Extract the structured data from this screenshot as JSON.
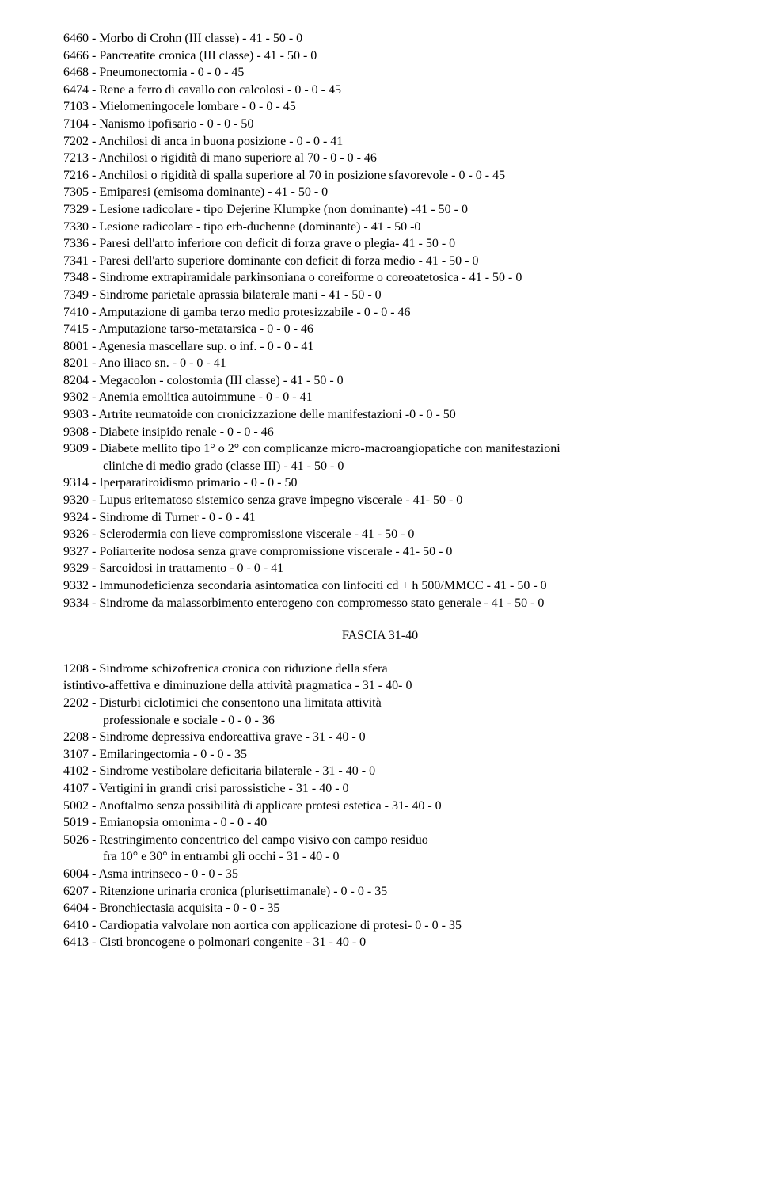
{
  "section1": {
    "lines": [
      "6460 - Morbo di Crohn (III classe) - 41 - 50 - 0",
      "6466 - Pancreatite cronica (III classe) - 41 - 50 - 0",
      "6468 - Pneumonectomia - 0 - 0 - 45",
      "6474 - Rene a ferro di cavallo con calcolosi - 0 - 0 - 45",
      "7103 - Mielomeningocele lombare - 0 - 0 - 45",
      "7104 - Nanismo ipofisario - 0 - 0 - 50",
      "7202 - Anchilosi di anca in buona posizione - 0 - 0 - 41",
      "7213 - Anchilosi o rigidità di mano superiore al 70 - 0 - 0 - 46",
      "7216 - Anchilosi o rigidità di spalla superiore al 70 in posizione sfavorevole - 0 - 0 - 45",
      "7305 - Emiparesi (emisoma dominante) - 41 - 50 - 0",
      "7329 - Lesione radicolare - tipo Dejerine Klumpke (non dominante) -41 - 50 - 0",
      "7330 - Lesione radicolare - tipo erb-duchenne (dominante) - 41 - 50 -0",
      "7336 - Paresi dell'arto inferiore con deficit di forza grave o plegia- 41 - 50 - 0",
      "7341 - Paresi dell'arto superiore dominante con deficit di forza medio - 41 - 50 - 0",
      "7348 - Sindrome extrapiramidale parkinsoniana o coreiforme o coreoatetosica - 41 - 50 - 0",
      "7349 - Sindrome parietale aprassia bilaterale mani - 41 - 50 - 0",
      "7410 - Amputazione di gamba terzo medio protesizzabile - 0 - 0 - 46",
      "7415 - Amputazione tarso-metatarsica - 0 - 0 - 46",
      "8001 - Agenesia mascellare sup. o inf. - 0 - 0 - 41",
      "8201 - Ano iliaco sn. - 0 - 0 - 41",
      "8204 - Megacolon - colostomia (III classe) - 41 - 50 - 0",
      "9302 - Anemia emolitica autoimmune - 0 - 0 - 41",
      "9303 - Artrite reumatoide con cronicizzazione delle manifestazioni -0 - 0 - 50",
      "9308 - Diabete insipido renale - 0 - 0 - 46",
      "9309 - Diabete mellito tipo 1° o 2° con complicanze micro-macroangiopatiche con manifestazioni"
    ],
    "indent1": "cliniche di medio grado (classe III) - 41 - 50 - 0",
    "lines2": [
      "9314 - Iperparatiroidismo primario - 0 - 0 - 50",
      "9320 - Lupus eritematoso sistemico senza grave impegno viscerale - 41- 50 - 0",
      "9324 - Sindrome di Turner - 0 - 0 - 41",
      "9326 - Sclerodermia con lieve compromissione viscerale - 41 - 50 - 0",
      "9327 - Poliarterite nodosa senza grave compromissione viscerale - 41- 50 - 0",
      "9329 - Sarcoidosi in trattamento - 0 - 0 - 41",
      "9332 - Immunodeficienza secondaria asintomatica con linfociti cd + h 500/MMCC - 41 - 50 - 0",
      "9334 - Sindrome da malassorbimento enterogeno con compromesso stato generale - 41 - 50 - 0"
    ]
  },
  "heading": "FASCIA 31-40",
  "section2": {
    "lines1": [
      "1208 - Sindrome schizofrenica cronica con riduzione della sfera",
      "istintivo-affettiva e diminuzione della attività pragmatica - 31 - 40- 0",
      "2202 - Disturbi ciclotimici che consentono una limitata attività"
    ],
    "indent1": "professionale e sociale - 0 - 0 - 36",
    "lines2": [
      "2208 - Sindrome depressiva endoreattiva grave - 31 - 40 - 0",
      "3107 - Emilaringectomia - 0 - 0 - 35",
      "4102 - Sindrome vestibolare deficitaria bilaterale - 31 - 40 - 0",
      "4107 - Vertigini in grandi crisi parossistiche - 31 - 40 - 0",
      "5002 - Anoftalmo senza possibilità di applicare protesi estetica - 31- 40 - 0",
      "5019 - Emianopsia omonima - 0 - 0 - 40",
      "5026 - Restringimento concentrico del campo visivo con campo residuo"
    ],
    "indent2": "fra 10° e 30° in entrambi gli occhi - 31 - 40 - 0",
    "lines3": [
      "6004 - Asma intrinseco - 0 - 0 - 35",
      "6207 - Ritenzione urinaria cronica (plurisettimanale) - 0 - 0 - 35",
      "6404 - Bronchiectasia acquisita - 0 - 0 - 35",
      "6410 - Cardiopatia valvolare non aortica con applicazione di protesi- 0 - 0 - 35",
      "6413 - Cisti broncogene o polmonari congenite - 31 - 40 - 0"
    ]
  }
}
